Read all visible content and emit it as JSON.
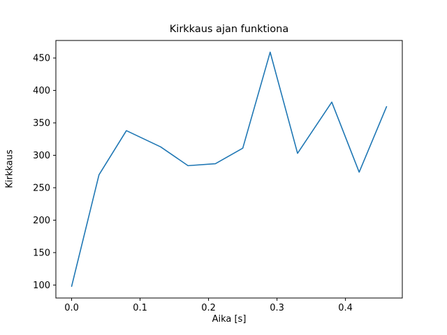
{
  "chart_data": {
    "type": "line",
    "title": "Kirkkaus ajan funktiona",
    "xlabel": "Aika [s]",
    "ylabel": "Kirkkaus",
    "x": [
      0.0,
      0.04,
      0.08,
      0.13,
      0.17,
      0.21,
      0.25,
      0.29,
      0.33,
      0.38,
      0.42,
      0.46
    ],
    "y": [
      98,
      270,
      338,
      313,
      284,
      287,
      311,
      459,
      303,
      382,
      274,
      375
    ],
    "xlim": [
      -0.023,
      0.483
    ],
    "ylim": [
      80,
      477
    ],
    "xticks": [
      0.0,
      0.1,
      0.2,
      0.3,
      0.4
    ],
    "yticks": [
      100,
      150,
      200,
      250,
      300,
      350,
      400,
      450
    ],
    "line_color": "#1f77b4",
    "axis_color": "#000000",
    "background_color": "#ffffff",
    "grid": false,
    "legend": null
  }
}
